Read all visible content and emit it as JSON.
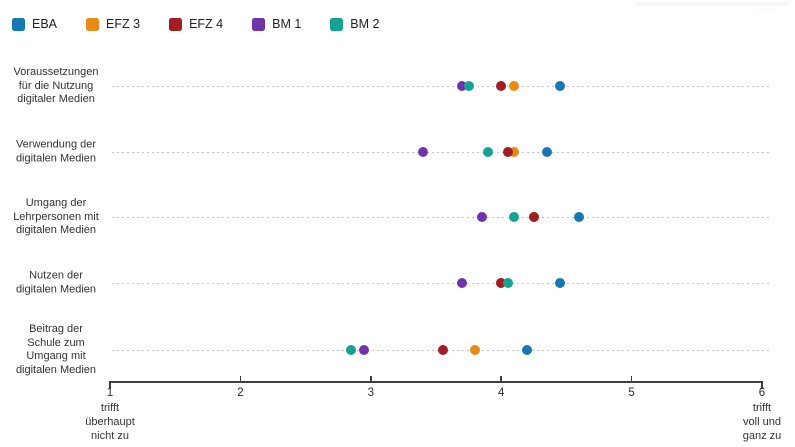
{
  "page": {
    "background": "#ffffff"
  },
  "chart_data": {
    "type": "scatter",
    "variant": "horizontal-dot-plot",
    "title": "",
    "grid": "dashed horizontal line per category",
    "legend_position": "top-left",
    "categories": [
      "Voraussetzungen\nfür die Nutzung\ndigitaler Medien",
      "Verwendung der\ndigitalen Medien",
      "Umgang der\nLehrpersonen mit\ndigitalen Medien",
      "Nutzen der\ndigitalen Medien",
      "Beitrag der\nSchule zum\nUmgang mit\ndigitalen Medien"
    ],
    "series": [
      {
        "name": "EBA",
        "color": "#1577b4",
        "values": [
          4.45,
          4.35,
          4.6,
          4.45,
          4.2
        ]
      },
      {
        "name": "EFZ 3",
        "color": "#e98a15",
        "values": [
          4.1,
          4.1,
          4.25,
          4.0,
          3.8
        ]
      },
      {
        "name": "EFZ 4",
        "color": "#a31e22",
        "values": [
          4.0,
          4.05,
          4.25,
          4.0,
          3.55
        ]
      },
      {
        "name": "BM 1",
        "color": "#7134a8",
        "values": [
          3.7,
          3.4,
          3.85,
          3.7,
          2.95
        ]
      },
      {
        "name": "BM 2",
        "color": "#16a292",
        "values": [
          3.75,
          3.9,
          4.1,
          4.05,
          2.85
        ]
      }
    ],
    "xaxis": {
      "min": 1,
      "max": 6,
      "ticks": [
        1,
        2,
        3,
        4,
        5,
        6
      ],
      "min_label": "trifft\nüberhaupt\nnicht zu",
      "max_label": "trifft\nvoll und\nganz zu"
    }
  }
}
